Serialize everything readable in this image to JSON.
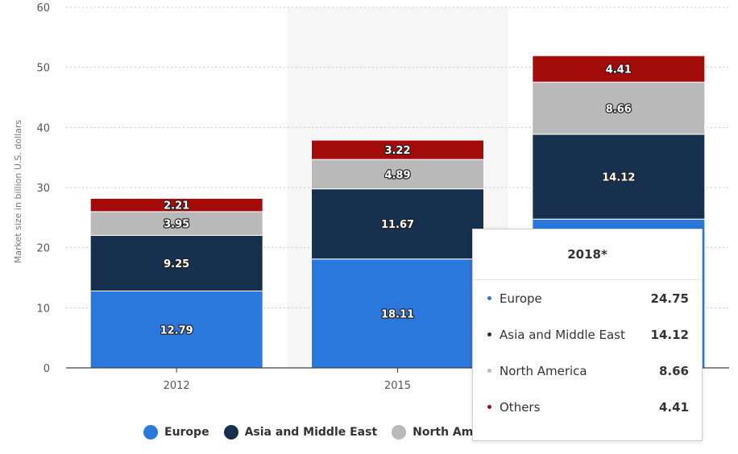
{
  "chart_data": {
    "type": "bar",
    "stacked": true,
    "title": "",
    "xlabel": "",
    "ylabel": "Market size in billion U.S. dollars",
    "ylim": [
      0,
      60
    ],
    "yticks": [
      0,
      10,
      20,
      30,
      40,
      50,
      60
    ],
    "grid": true,
    "legend_position": "bottom",
    "categories": [
      "2012",
      "2015",
      "2018*"
    ],
    "visible_category_labels": [
      "2012",
      "2015",
      ""
    ],
    "highlighted_category": "2015",
    "series": [
      {
        "name": "Europe",
        "color": "#2a78dc",
        "values": [
          12.79,
          18.11,
          24.75
        ],
        "labels": [
          "12.79",
          "18.11",
          ""
        ]
      },
      {
        "name": "Asia and Middle East",
        "color": "#16304d",
        "values": [
          9.25,
          11.67,
          14.12
        ],
        "labels": [
          "9.25",
          "11.67",
          "14.12"
        ]
      },
      {
        "name": "North America",
        "color": "#b9b9b9",
        "values": [
          3.95,
          4.89,
          8.66
        ],
        "labels": [
          "3.95",
          "4.89",
          "8.66"
        ]
      },
      {
        "name": "Others",
        "color": "#a40c0c",
        "values": [
          2.21,
          3.22,
          4.41
        ],
        "labels": [
          "2.21",
          "3.22",
          "4.41"
        ]
      }
    ]
  },
  "legend": {
    "items": [
      {
        "label": "Europe",
        "color": "#2a78dc"
      },
      {
        "label": "Asia and Middle East",
        "color": "#16304d"
      },
      {
        "label": "North America",
        "color": "#b9b9b9"
      }
    ]
  },
  "tooltip": {
    "title": "2018*",
    "rows": [
      {
        "label": "Europe",
        "value": "24.75",
        "color": "#2a78dc"
      },
      {
        "label": "Asia and Middle East",
        "value": "14.12",
        "color": "#16304d"
      },
      {
        "label": "North America",
        "value": "8.66",
        "color": "#b9b9b9"
      },
      {
        "label": "Others",
        "value": "4.41",
        "color": "#a40c0c"
      }
    ]
  }
}
